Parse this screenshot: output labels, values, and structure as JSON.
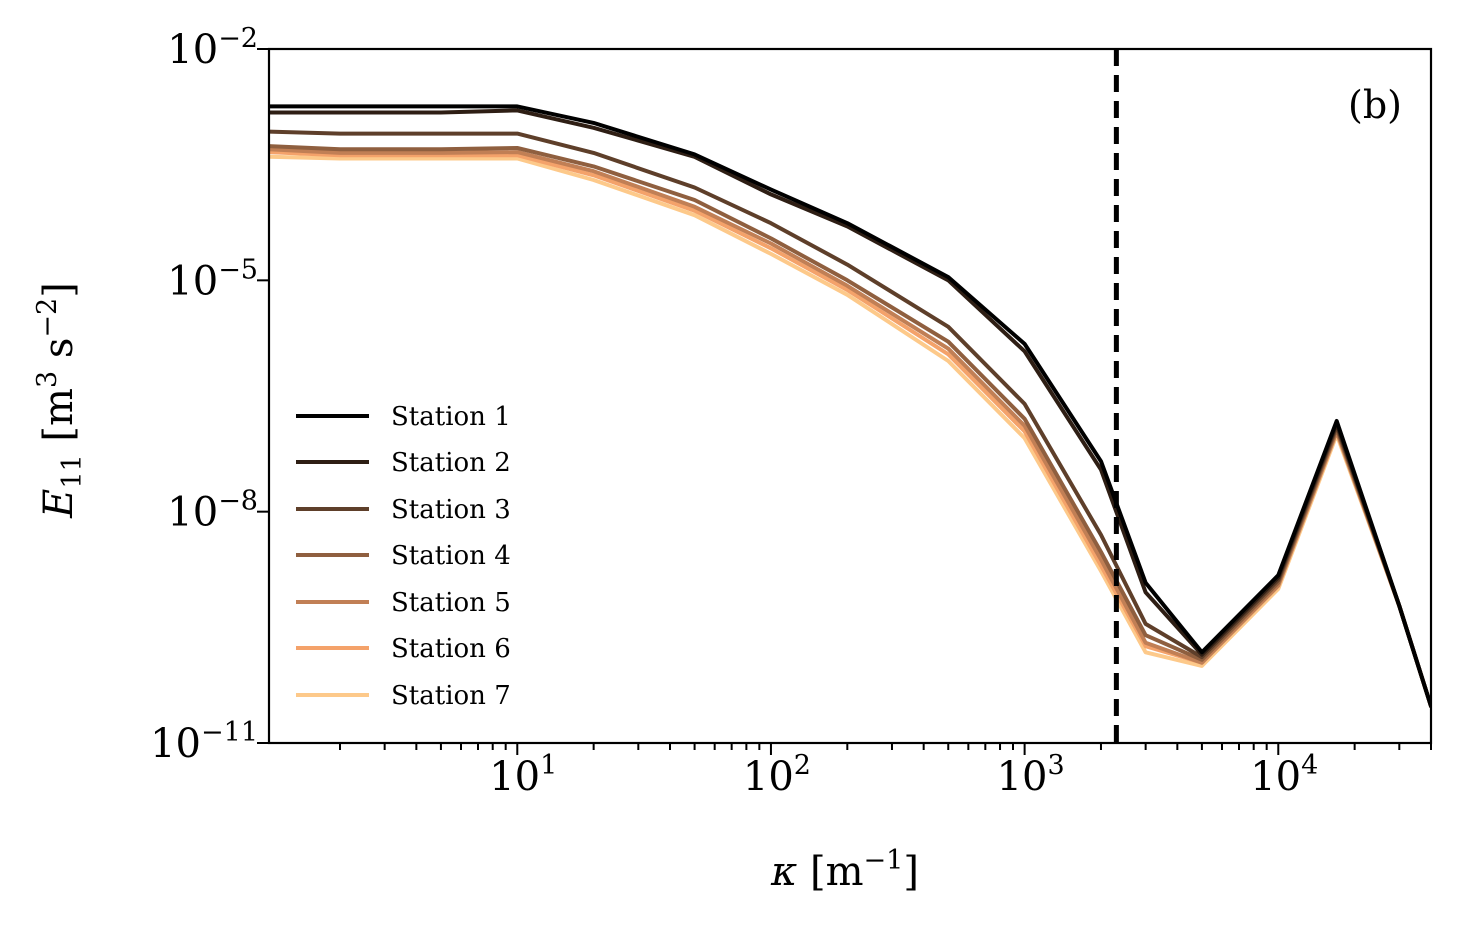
{
  "chart_data": {
    "type": "line",
    "panel_label": "(b)",
    "xscale": "log",
    "yscale": "log",
    "xlim": [
      1.05,
      40000
    ],
    "ylim": [
      1e-11,
      0.01
    ],
    "xlabel": {
      "sym": "κ",
      "unit": "m",
      "exp": "−1"
    },
    "ylabel": {
      "sym": "E",
      "sub": "11",
      "unit1": "m",
      "exp1": "3",
      "unit2": "s",
      "exp2": "−2"
    },
    "x_ticks": [
      {
        "value": 10,
        "base": "10",
        "exp": "1"
      },
      {
        "value": 100,
        "base": "10",
        "exp": "2"
      },
      {
        "value": 1000,
        "base": "10",
        "exp": "3"
      },
      {
        "value": 10000,
        "base": "10",
        "exp": "4"
      }
    ],
    "y_ticks": [
      {
        "value": 0.01,
        "base": "10",
        "exp": "−2"
      },
      {
        "value": 1e-05,
        "base": "10",
        "exp": "−5"
      },
      {
        "value": 1e-08,
        "base": "10",
        "exp": "−8"
      },
      {
        "value": 1e-11,
        "base": "10",
        "exp": "−11"
      }
    ],
    "vertical_line": {
      "x": 2300,
      "style": "dashed",
      "color": "#000000"
    },
    "legend_position": "lower-left",
    "x": [
      1.05,
      2,
      5,
      10,
      20,
      50,
      100,
      200,
      500,
      1000,
      2000,
      3000,
      5000,
      10000,
      17000,
      30000,
      40000
    ],
    "series": [
      {
        "name": "Station 1",
        "color": "#000000",
        "values": [
          0.0018,
          0.0018,
          0.0018,
          0.0018,
          0.0011,
          0.00043,
          0.00015,
          5.5e-05,
          1.1e-05,
          1.5e-06,
          4.5e-08,
          1.2e-09,
          1.5e-10,
          1.5e-09,
          1.5e-07,
          6e-10,
          3e-11
        ]
      },
      {
        "name": "Station 2",
        "color": "#2e1e14",
        "values": [
          0.0015,
          0.0015,
          0.0015,
          0.0016,
          0.00095,
          0.0004,
          0.00013,
          5e-05,
          1e-05,
          1.2e-06,
          3.5e-08,
          9e-10,
          1.4e-10,
          1.4e-09,
          1.4e-07,
          6e-10,
          3e-11
        ]
      },
      {
        "name": "Station 3",
        "color": "#5e3f2a",
        "values": [
          0.00085,
          0.0008,
          0.0008,
          0.0008,
          0.00045,
          0.00016,
          5.5e-05,
          1.6e-05,
          2.5e-06,
          2.5e-07,
          5e-09,
          3.5e-10,
          1.3e-10,
          1.3e-09,
          1.3e-07,
          6e-10,
          3e-11
        ]
      },
      {
        "name": "Station 4",
        "color": "#8f5f3f",
        "values": [
          0.00055,
          0.0005,
          0.0005,
          0.00052,
          0.0003,
          0.00011,
          3.5e-05,
          1e-05,
          1.6e-06,
          1.6e-07,
          3e-09,
          2.5e-10,
          1.2e-10,
          1.2e-09,
          1.2e-07,
          6e-10,
          3e-11
        ]
      },
      {
        "name": "Station 5",
        "color": "#c17f55",
        "values": [
          0.0005,
          0.00045,
          0.00045,
          0.00046,
          0.00026,
          9e-05,
          3e-05,
          8.5e-06,
          1.3e-06,
          1.3e-07,
          2.4e-09,
          2e-10,
          1.1e-10,
          1.1e-09,
          1.1e-07,
          6e-10,
          3e-11
        ]
      },
      {
        "name": "Station 6",
        "color": "#f4a26a",
        "values": [
          0.00046,
          0.00042,
          0.00042,
          0.00042,
          0.00023,
          8e-05,
          2.6e-05,
          7.5e-06,
          1.1e-06,
          1.1e-07,
          2e-09,
          1.8e-10,
          1.1e-10,
          1.1e-09,
          1.1e-07,
          6e-10,
          3e-11
        ]
      },
      {
        "name": "Station 7",
        "color": "#fdc98a",
        "values": [
          0.0004,
          0.00038,
          0.00038,
          0.00038,
          0.0002,
          7e-05,
          2.2e-05,
          6.5e-06,
          9e-07,
          9e-08,
          1.7e-09,
          1.5e-10,
          1e-10,
          1e-09,
          1e-07,
          6e-10,
          3e-11
        ]
      }
    ]
  }
}
